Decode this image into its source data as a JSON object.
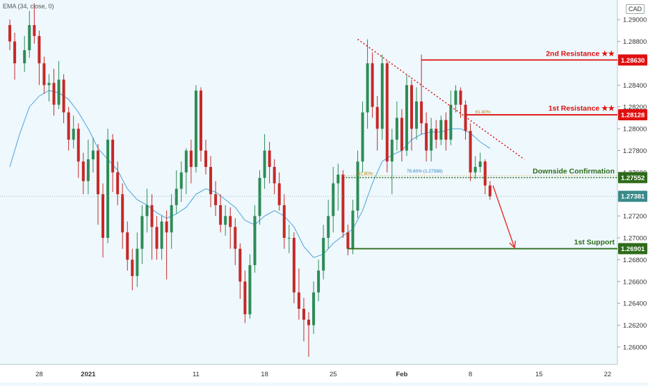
{
  "indicator_label": "EMA (34, close, 0)",
  "currency_label": "CAD",
  "colors": {
    "background": "#eef8fd",
    "candle_up": "#2e8b57",
    "candle_down": "#c62828",
    "ema": "#4aa3d9",
    "resistance": "#e01010",
    "support": "#2e6b1a",
    "projection": "#e53935"
  },
  "chart_data": {
    "type": "candlestick",
    "y_axis": {
      "range": [
        1.2584,
        1.2918
      ],
      "ticks": [
        "1.29000",
        "1.28800",
        "1.28400",
        "1.28200",
        "1.28000",
        "1.27800",
        "1.27600",
        "1.27200",
        "1.27000",
        "1.26800",
        "1.26600",
        "1.26400",
        "1.26200",
        "1.26000"
      ]
    },
    "x_axis": {
      "ticks": [
        "28",
        "2021",
        "11",
        "18",
        "25",
        "Feb",
        "8",
        "15",
        "22"
      ],
      "tick_positions": [
        -6,
        -1,
        10,
        17,
        24,
        31,
        38,
        45,
        52
      ]
    },
    "candles": [
      [
        -9,
        1.2895,
        1.288,
        1.29,
        1.2872
      ],
      [
        -8.5,
        1.288,
        1.286,
        1.2888,
        1.2845
      ],
      [
        -7.5,
        1.286,
        1.2872,
        1.2885,
        1.2852
      ],
      [
        -7,
        1.2872,
        1.2895,
        1.2908,
        1.2865
      ],
      [
        -6.5,
        1.2895,
        1.2885,
        1.2915,
        1.2878
      ],
      [
        -6,
        1.2885,
        1.286,
        1.289,
        1.284
      ],
      [
        -5.5,
        1.286,
        1.284,
        1.2866,
        1.2832
      ],
      [
        -5,
        1.284,
        1.2842,
        1.285,
        1.2825
      ],
      [
        -4.5,
        1.2842,
        1.2822,
        1.2855,
        1.2812
      ],
      [
        -4,
        1.2822,
        1.2845,
        1.2862,
        1.2818
      ],
      [
        -3.5,
        1.2845,
        1.2815,
        1.285,
        1.2805
      ],
      [
        -3,
        1.2815,
        1.279,
        1.282,
        1.278
      ],
      [
        -2.5,
        1.279,
        1.28,
        1.2812,
        1.2782
      ],
      [
        -2,
        1.28,
        1.277,
        1.2805,
        1.2755
      ],
      [
        -1.5,
        1.277,
        1.2752,
        1.2778,
        1.274
      ],
      [
        -1,
        1.2752,
        1.2772,
        1.279,
        1.274
      ],
      [
        -0.5,
        1.2772,
        1.278,
        1.2792,
        1.276
      ],
      [
        0,
        1.278,
        1.274,
        1.2786,
        1.2712
      ],
      [
        0.5,
        1.274,
        1.27,
        1.275,
        1.2682
      ],
      [
        1,
        1.27,
        1.279,
        1.28,
        1.2695
      ],
      [
        1.5,
        1.279,
        1.276,
        1.2795,
        1.2742
      ],
      [
        2,
        1.276,
        1.274,
        1.277,
        1.273
      ],
      [
        2.5,
        1.274,
        1.2705,
        1.275,
        1.269
      ],
      [
        3,
        1.2705,
        1.268,
        1.2715,
        1.267
      ],
      [
        3.5,
        1.268,
        1.2665,
        1.269,
        1.2652
      ],
      [
        4,
        1.2665,
        1.269,
        1.2705,
        1.2655
      ],
      [
        4.5,
        1.269,
        1.272,
        1.273,
        1.2676
      ],
      [
        5,
        1.272,
        1.273,
        1.2745,
        1.2705
      ],
      [
        5.5,
        1.273,
        1.271,
        1.274,
        1.268
      ],
      [
        6,
        1.271,
        1.269,
        1.272,
        1.268
      ],
      [
        6.5,
        1.269,
        1.2715,
        1.272,
        1.268
      ],
      [
        7,
        1.2715,
        1.2705,
        1.2725,
        1.2662
      ],
      [
        7.5,
        1.2705,
        1.273,
        1.274,
        1.269
      ],
      [
        8,
        1.273,
        1.2745,
        1.2762,
        1.2722
      ],
      [
        8.5,
        1.2745,
        1.276,
        1.277,
        1.2733
      ],
      [
        9,
        1.276,
        1.278,
        1.2782,
        1.274
      ],
      [
        9.5,
        1.278,
        1.2765,
        1.279,
        1.275
      ],
      [
        10,
        1.2765,
        1.2835,
        1.284,
        1.276
      ],
      [
        10.5,
        1.2835,
        1.278,
        1.2838,
        1.277
      ],
      [
        11,
        1.278,
        1.2765,
        1.279,
        1.2758
      ],
      [
        11.5,
        1.2765,
        1.274,
        1.2775,
        1.2728
      ],
      [
        12,
        1.274,
        1.273,
        1.2752,
        1.272
      ],
      [
        12.5,
        1.273,
        1.2712,
        1.274,
        1.2705
      ],
      [
        13,
        1.2712,
        1.272,
        1.273,
        1.2702
      ],
      [
        13.5,
        1.272,
        1.271,
        1.2728,
        1.269
      ],
      [
        14,
        1.271,
        1.269,
        1.2718,
        1.2675
      ],
      [
        14.5,
        1.269,
        1.266,
        1.2695,
        1.2644
      ],
      [
        15,
        1.266,
        1.263,
        1.267,
        1.2622
      ],
      [
        15.5,
        1.263,
        1.2675,
        1.2685,
        1.2626
      ],
      [
        16,
        1.2675,
        1.272,
        1.273,
        1.2668
      ],
      [
        16.5,
        1.272,
        1.2755,
        1.2762,
        1.2712
      ],
      [
        17,
        1.2755,
        1.278,
        1.2795,
        1.2745
      ],
      [
        17.5,
        1.278,
        1.2765,
        1.2788,
        1.275
      ],
      [
        18,
        1.2765,
        1.275,
        1.2772,
        1.274
      ],
      [
        18.5,
        1.275,
        1.273,
        1.276,
        1.2725
      ],
      [
        19,
        1.273,
        1.27,
        1.274,
        1.269
      ],
      [
        19.5,
        1.27,
        1.27,
        1.2712,
        1.2686
      ],
      [
        20,
        1.27,
        1.265,
        1.2705,
        1.264
      ],
      [
        20.5,
        1.265,
        1.2635,
        1.2672,
        1.2625
      ],
      [
        21,
        1.2635,
        1.2625,
        1.2645,
        1.2605
      ],
      [
        21.5,
        1.2625,
        1.262,
        1.2632,
        1.2591
      ],
      [
        22,
        1.262,
        1.265,
        1.266,
        1.2612
      ],
      [
        22.5,
        1.265,
        1.267,
        1.268,
        1.2642
      ],
      [
        23,
        1.267,
        1.27,
        1.2712,
        1.2662
      ],
      [
        23.5,
        1.27,
        1.272,
        1.2735,
        1.269
      ],
      [
        24,
        1.272,
        1.275,
        1.2765,
        1.2705
      ],
      [
        24.5,
        1.275,
        1.2758,
        1.2768,
        1.2725
      ],
      [
        25,
        1.2758,
        1.2705,
        1.2762,
        1.27
      ],
      [
        25.5,
        1.2705,
        1.269,
        1.2712,
        1.2684
      ],
      [
        26,
        1.269,
        1.2725,
        1.2735,
        1.2685
      ],
      [
        26.5,
        1.2725,
        1.277,
        1.278,
        1.2718
      ],
      [
        27,
        1.277,
        1.2815,
        1.2825,
        1.276
      ],
      [
        27.5,
        1.2815,
        1.286,
        1.2882,
        1.28
      ],
      [
        28,
        1.286,
        1.282,
        1.287,
        1.281
      ],
      [
        28.5,
        1.282,
        1.28,
        1.283,
        1.278
      ],
      [
        29,
        1.28,
        1.286,
        1.2868,
        1.279
      ],
      [
        29.5,
        1.286,
        1.277,
        1.2862,
        1.276
      ],
      [
        30,
        1.277,
        1.279,
        1.28,
        1.274
      ],
      [
        30.5,
        1.279,
        1.281,
        1.2825,
        1.278
      ],
      [
        31,
        1.281,
        1.278,
        1.2818,
        1.277
      ],
      [
        31.5,
        1.278,
        1.284,
        1.285,
        1.2775
      ],
      [
        32,
        1.284,
        1.28,
        1.2845,
        1.278
      ],
      [
        32.5,
        1.28,
        1.2825,
        1.2838,
        1.279
      ],
      [
        33,
        1.2825,
        1.2805,
        1.2868,
        1.2795
      ],
      [
        33.5,
        1.2805,
        1.278,
        1.2815,
        1.277
      ],
      [
        34,
        1.278,
        1.28,
        1.281,
        1.277
      ],
      [
        34.5,
        1.28,
        1.279,
        1.2808,
        1.2782
      ],
      [
        35,
        1.279,
        1.2808,
        1.2812,
        1.2785
      ],
      [
        35.5,
        1.2808,
        1.279,
        1.2815,
        1.278
      ],
      [
        36,
        1.279,
        1.2822,
        1.2835,
        1.2785
      ],
      [
        36.5,
        1.2822,
        1.2835,
        1.284,
        1.2815
      ],
      [
        37,
        1.2835,
        1.2822,
        1.2838,
        1.281
      ],
      [
        37.5,
        1.2822,
        1.2798,
        1.2826,
        1.279
      ],
      [
        38,
        1.2798,
        1.276,
        1.2805,
        1.2752
      ],
      [
        38.5,
        1.276,
        1.2765,
        1.2775,
        1.2754
      ],
      [
        39,
        1.2765,
        1.277,
        1.2778,
        1.276
      ],
      [
        39.5,
        1.277,
        1.2748,
        1.2772,
        1.274
      ],
      [
        40,
        1.2748,
        1.2738,
        1.2752,
        1.2735
      ]
    ],
    "ema": [
      [
        -9,
        1.2765
      ],
      [
        -8,
        1.2795
      ],
      [
        -7,
        1.282
      ],
      [
        -6,
        1.283
      ],
      [
        -5,
        1.2835
      ],
      [
        -4,
        1.2833
      ],
      [
        -3,
        1.2827
      ],
      [
        -2,
        1.2815
      ],
      [
        -1,
        1.28
      ],
      [
        0,
        1.2782
      ],
      [
        1,
        1.2772
      ],
      [
        2,
        1.2762
      ],
      [
        3,
        1.2745
      ],
      [
        4,
        1.2735
      ],
      [
        5,
        1.273
      ],
      [
        6,
        1.2723
      ],
      [
        7,
        1.2718
      ],
      [
        8,
        1.2722
      ],
      [
        9,
        1.2728
      ],
      [
        10,
        1.274
      ],
      [
        11,
        1.2745
      ],
      [
        12,
        1.2742
      ],
      [
        13,
        1.2735
      ],
      [
        14,
        1.2728
      ],
      [
        15,
        1.2716
      ],
      [
        16,
        1.2712
      ],
      [
        17,
        1.272
      ],
      [
        18,
        1.2725
      ],
      [
        19,
        1.272
      ],
      [
        20,
        1.271
      ],
      [
        21,
        1.2692
      ],
      [
        22,
        1.2682
      ],
      [
        23,
        1.2685
      ],
      [
        24,
        1.2695
      ],
      [
        25,
        1.2702
      ],
      [
        26,
        1.2708
      ],
      [
        27,
        1.2725
      ],
      [
        28,
        1.275
      ],
      [
        29,
        1.277
      ],
      [
        30,
        1.2776
      ],
      [
        31,
        1.278
      ],
      [
        32,
        1.279
      ],
      [
        33,
        1.2795
      ],
      [
        34,
        1.2797
      ],
      [
        35,
        1.2797
      ],
      [
        36,
        1.28
      ],
      [
        37,
        1.28
      ],
      [
        38,
        1.2796
      ],
      [
        39,
        1.2788
      ],
      [
        40,
        1.2782
      ]
    ],
    "levels": [
      {
        "name": "2nd Resistance ★★",
        "value": "1.28630",
        "price": 1.2863,
        "x_start": 33,
        "color": "#e01010",
        "label_color": "#e01010"
      },
      {
        "name": "1st Resistance ★★",
        "value": "1.28128",
        "price": 1.28128,
        "x_start": 37.5,
        "color": "#e01010",
        "label_color": "#e01010"
      },
      {
        "name": "Downside Confirmation",
        "value": "1.27552",
        "price": 1.27552,
        "x_start": 25,
        "color": "#2e6b1a",
        "label_color": "#2e6b1a",
        "dotted": true
      },
      {
        "name": "1st Support",
        "value": "1.26901",
        "price": 1.26901,
        "x_start": 25.5,
        "color": "#2e6b1a",
        "label_color": "#2e6b1a"
      }
    ],
    "current_price": {
      "value": "1.27381",
      "price": 1.27381
    },
    "fib_labels": [
      {
        "text": "78.60% (1.27588)",
        "x": 31.5,
        "price": 1.27588
      },
      {
        "text": "61.80%",
        "x": 38.5,
        "price": 1.28128
      },
      {
        "text": "61.80%",
        "x": 26.5,
        "price": 1.27565
      }
    ],
    "trendline": {
      "from": [
        26.5,
        1.2882
      ],
      "to": [
        43.5,
        1.2772
      ]
    },
    "projection_arrow": {
      "from": [
        40.3,
        1.2748
      ],
      "to": [
        42.5,
        1.2691
      ]
    }
  }
}
